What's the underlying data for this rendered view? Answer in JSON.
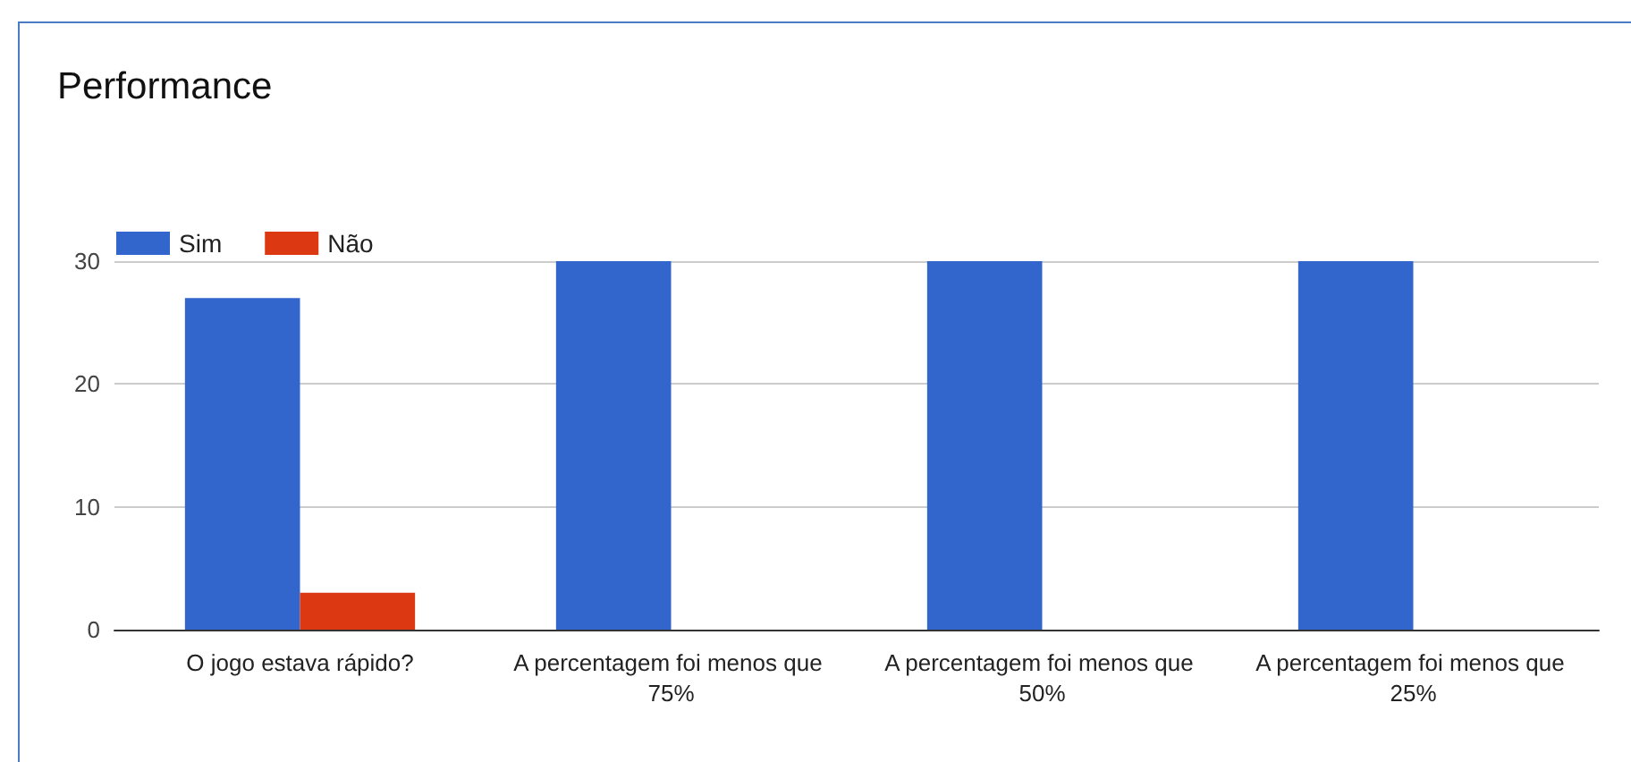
{
  "chart_data": {
    "type": "bar",
    "title": "Performance",
    "categories": [
      "O jogo estava rápido?",
      "A percentagem foi menos que 75%",
      "A percentagem foi menos que 50%",
      "A percentagem foi menos que 25%"
    ],
    "series": [
      {
        "name": "Sim",
        "color": "#3366cc",
        "values": [
          27,
          30,
          30,
          30
        ]
      },
      {
        "name": "Não",
        "color": "#dc3912",
        "values": [
          3,
          0,
          0,
          0
        ]
      }
    ],
    "ylim": [
      0,
      30
    ],
    "yticks": [
      0,
      10,
      20,
      30
    ],
    "grid": "y",
    "legend": "top left"
  }
}
